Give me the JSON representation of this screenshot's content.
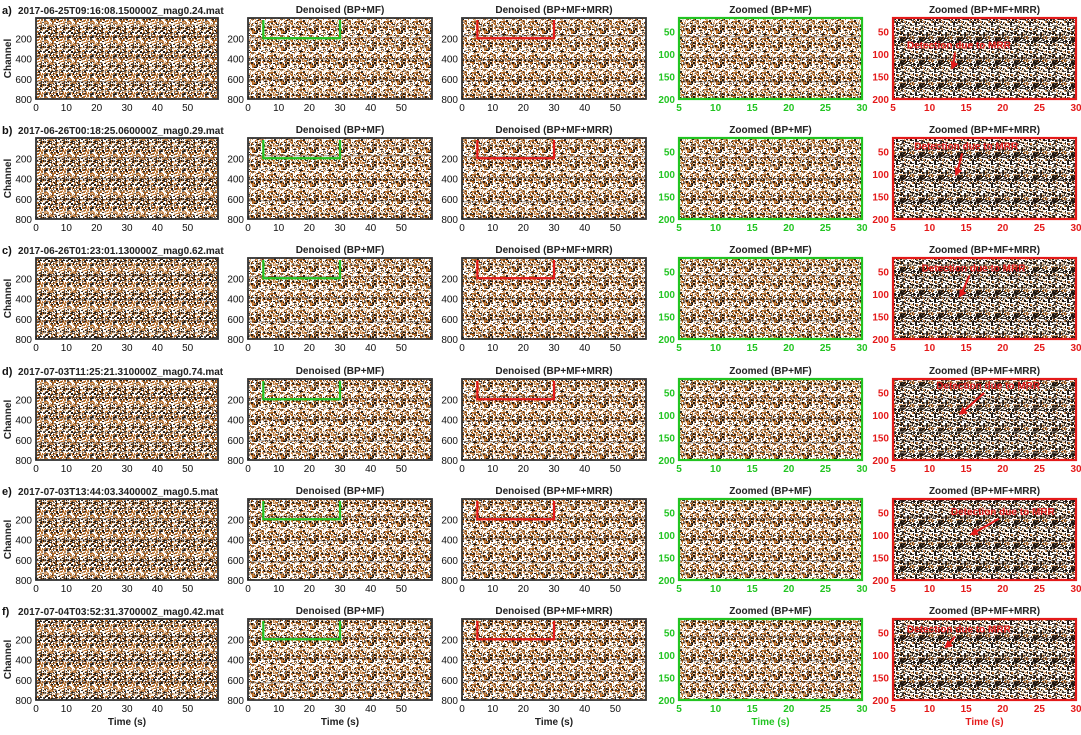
{
  "colors": {
    "black_frame": "#333333",
    "green": "#22c422",
    "red": "#e41a1a",
    "noise_dark": "#1a120c",
    "noise_brown": "#b5651d",
    "noise_light": "#e9d3b8"
  },
  "chart_data": {
    "type": "heatmap",
    "layout": {
      "rows": 6,
      "columns": 5
    },
    "column_titles": [
      "",
      "Denoised (BP+MF)",
      "Denoised (BP+MF+MRR)",
      "Zoomed (BP+MF)",
      "Zoomed (BP+MF+MRR)"
    ],
    "ylabel": "Channel",
    "xlabel": "Time (s)",
    "full_panels": {
      "xlim": [
        0,
        60
      ],
      "xticks": [
        0,
        10,
        20,
        30,
        40,
        50
      ],
      "ylim": [
        800,
        0
      ],
      "yticks_col1": [
        200,
        400,
        600,
        800
      ],
      "yticks_other": [
        200,
        400,
        600,
        800
      ]
    },
    "zoom_panels": {
      "xlim": [
        5,
        30
      ],
      "xticks": [
        5,
        10,
        15,
        20,
        25,
        30
      ],
      "ylim": [
        200,
        20
      ],
      "yticks": [
        50,
        100,
        150,
        200
      ]
    },
    "zoom_window": {
      "time": [
        5,
        30
      ],
      "channel": [
        20,
        200
      ]
    },
    "rows": [
      {
        "letter": "a)",
        "file": "2017-06-25T09:16:08.150000Z_mag0.24.mat",
        "annotation": "Detection due to MRR",
        "ann_from": [
          14,
          88
        ],
        "ann_to": [
          13,
          135
        ],
        "show_xlabel": false
      },
      {
        "letter": "b)",
        "file": "2017-06-26T00:18:25.060000Z_mag0.29.mat",
        "annotation": "Detection due to MRR",
        "ann_from": [
          15,
          45
        ],
        "ann_to": [
          13.5,
          105
        ],
        "show_xlabel": false
      },
      {
        "letter": "c)",
        "file": "2017-06-26T01:23:01.130000Z_mag0.62.mat",
        "annotation": "Detection due to MRR",
        "ann_from": [
          16,
          50
        ],
        "ann_to": [
          14,
          108
        ],
        "show_xlabel": false
      },
      {
        "letter": "d)",
        "file": "2017-07-03T11:25:21.310000Z_mag0.74.mat",
        "annotation": "Detection due to MRR",
        "ann_from": [
          18,
          42
        ],
        "ann_to": [
          14,
          100
        ],
        "show_xlabel": false
      },
      {
        "letter": "e)",
        "file": "2017-07-03T13:44:03.340000Z_mag0.5.mat",
        "annotation": "Detection due to MRR",
        "ann_from": [
          20,
          55
        ],
        "ann_to": [
          15.5,
          100
        ],
        "show_xlabel": false
      },
      {
        "letter": "f)",
        "file": "2017-07-04T03:52:31.370000Z_mag0.42.mat",
        "annotation": "Detection due to MRR",
        "ann_from": [
          14,
          50
        ],
        "ann_to": [
          12,
          85
        ],
        "show_xlabel": true
      }
    ]
  }
}
